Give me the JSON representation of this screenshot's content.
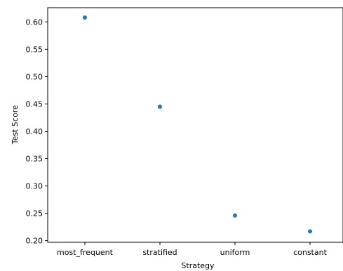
{
  "chart_data": {
    "type": "scatter",
    "categories": [
      "most_frequent",
      "stratified",
      "uniform",
      "constant"
    ],
    "series": [
      {
        "values": [
          0.608,
          0.445,
          0.246,
          0.217
        ],
        "color": "#1f77b4"
      }
    ],
    "title": "",
    "xlabel": "Strategy",
    "ylabel": "Test Score",
    "ylim": [
      0.197,
      0.626
    ],
    "yticks": [
      0.2,
      0.25,
      0.3,
      0.35,
      0.4,
      0.45,
      0.5,
      0.55,
      0.6
    ],
    "ytick_labels": [
      "0.20",
      "0.25",
      "0.30",
      "0.35",
      "0.40",
      "0.45",
      "0.50",
      "0.55",
      "0.60"
    ],
    "grid": false,
    "legend": "none"
  }
}
